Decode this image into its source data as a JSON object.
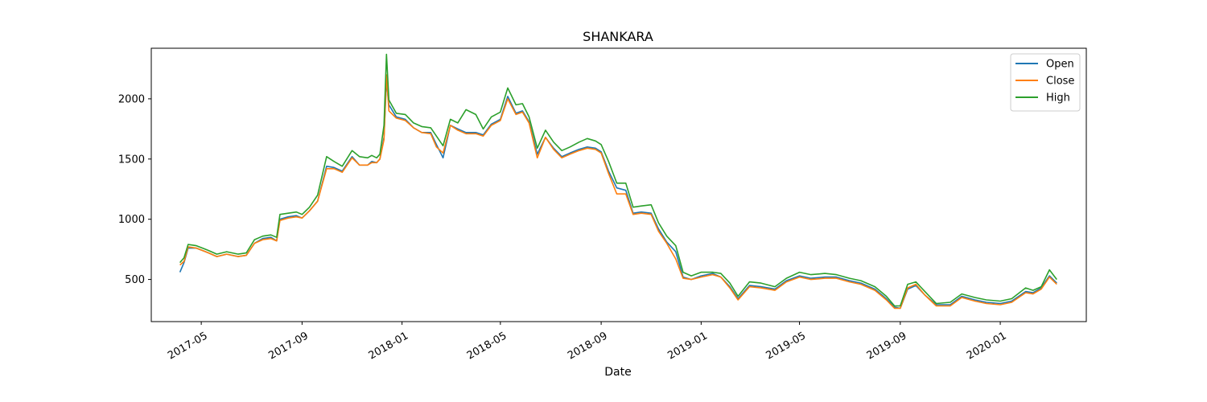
{
  "chart_data": {
    "type": "line",
    "title": "SHANKARA",
    "xlabel": "Date",
    "ylabel": "",
    "xlim": [
      "2017-03-01",
      "2020-04-15"
    ],
    "ylim": [
      150,
      2420
    ],
    "grid": false,
    "legend_position": "top-right",
    "x_ticks": [
      "2017-05",
      "2017-09",
      "2018-01",
      "2018-05",
      "2018-09",
      "2019-01",
      "2019-05",
      "2019-09",
      "2020-01"
    ],
    "y_ticks": [
      500,
      1000,
      1500,
      2000
    ],
    "colors": {
      "Open": "#1f77b4",
      "Close": "#ff7f0e",
      "High": "#2ca02c"
    },
    "x": [
      "2017-04-05",
      "2017-04-10",
      "2017-04-15",
      "2017-04-25",
      "2017-05-10",
      "2017-05-20",
      "2017-06-01",
      "2017-06-15",
      "2017-06-25",
      "2017-07-05",
      "2017-07-15",
      "2017-07-25",
      "2017-08-01",
      "2017-08-05",
      "2017-08-15",
      "2017-08-25",
      "2017-09-01",
      "2017-09-10",
      "2017-09-20",
      "2017-10-01",
      "2017-10-10",
      "2017-10-20",
      "2017-11-01",
      "2017-11-10",
      "2017-11-20",
      "2017-11-25",
      "2017-12-01",
      "2017-12-05",
      "2017-12-10",
      "2017-12-13",
      "2017-12-16",
      "2017-12-25",
      "2018-01-05",
      "2018-01-15",
      "2018-01-25",
      "2018-02-05",
      "2018-02-12",
      "2018-02-20",
      "2018-03-01",
      "2018-03-10",
      "2018-03-20",
      "2018-04-01",
      "2018-04-10",
      "2018-04-20",
      "2018-05-01",
      "2018-05-10",
      "2018-05-20",
      "2018-05-28",
      "2018-06-05",
      "2018-06-15",
      "2018-06-25",
      "2018-07-05",
      "2018-07-15",
      "2018-07-25",
      "2018-08-05",
      "2018-08-15",
      "2018-08-25",
      "2018-09-01",
      "2018-09-10",
      "2018-09-20",
      "2018-10-01",
      "2018-10-10",
      "2018-10-20",
      "2018-11-01",
      "2018-11-10",
      "2018-11-20",
      "2018-12-01",
      "2018-12-10",
      "2018-12-20",
      "2019-01-01",
      "2019-01-15",
      "2019-01-25",
      "2019-02-05",
      "2019-02-15",
      "2019-03-01",
      "2019-03-15",
      "2019-04-01",
      "2019-04-15",
      "2019-05-01",
      "2019-05-15",
      "2019-06-01",
      "2019-06-15",
      "2019-07-01",
      "2019-07-15",
      "2019-08-01",
      "2019-08-15",
      "2019-08-25",
      "2019-09-01",
      "2019-09-10",
      "2019-09-20",
      "2019-10-01",
      "2019-10-15",
      "2019-11-01",
      "2019-11-15",
      "2019-12-01",
      "2019-12-15",
      "2020-01-01",
      "2020-01-15",
      "2020-02-01",
      "2020-02-10",
      "2020-02-20",
      "2020-03-01",
      "2020-03-10"
    ],
    "series": [
      {
        "name": "Open",
        "values": [
          560,
          640,
          760,
          760,
          720,
          690,
          710,
          690,
          700,
          800,
          840,
          850,
          820,
          1000,
          1020,
          1030,
          1010,
          1070,
          1150,
          1440,
          1430,
          1400,
          1520,
          1450,
          1450,
          1480,
          1470,
          1500,
          1680,
          2150,
          1950,
          1850,
          1830,
          1760,
          1720,
          1720,
          1620,
          1510,
          1780,
          1750,
          1720,
          1720,
          1700,
          1790,
          1830,
          2020,
          1880,
          1900,
          1810,
          1540,
          1680,
          1590,
          1520,
          1550,
          1580,
          1600,
          1590,
          1560,
          1400,
          1260,
          1240,
          1050,
          1060,
          1050,
          920,
          810,
          730,
          520,
          500,
          530,
          550,
          520,
          440,
          340,
          450,
          440,
          420,
          490,
          530,
          510,
          520,
          520,
          490,
          470,
          420,
          340,
          270,
          260,
          420,
          450,
          370,
          290,
          290,
          360,
          330,
          310,
          300,
          320,
          400,
          390,
          430,
          530,
          470
        ]
      },
      {
        "name": "Close",
        "values": [
          620,
          650,
          770,
          760,
          720,
          690,
          710,
          690,
          700,
          800,
          830,
          840,
          820,
          990,
          1010,
          1020,
          1010,
          1070,
          1150,
          1420,
          1420,
          1390,
          1510,
          1450,
          1450,
          1470,
          1470,
          1500,
          1660,
          2200,
          1900,
          1840,
          1820,
          1760,
          1720,
          1710,
          1600,
          1550,
          1780,
          1740,
          1710,
          1710,
          1690,
          1780,
          1820,
          2000,
          1870,
          1890,
          1800,
          1510,
          1680,
          1580,
          1510,
          1540,
          1570,
          1590,
          1580,
          1550,
          1380,
          1210,
          1210,
          1040,
          1050,
          1040,
          900,
          800,
          670,
          510,
          500,
          520,
          540,
          520,
          430,
          330,
          440,
          430,
          410,
          480,
          520,
          500,
          510,
          510,
          480,
          460,
          410,
          330,
          260,
          260,
          430,
          460,
          370,
          280,
          280,
          350,
          320,
          300,
          290,
          310,
          390,
          380,
          420,
          520,
          460
        ]
      },
      {
        "name": "High",
        "values": [
          640,
          680,
          790,
          780,
          740,
          710,
          730,
          710,
          720,
          830,
          860,
          870,
          850,
          1040,
          1050,
          1060,
          1040,
          1100,
          1200,
          1520,
          1480,
          1440,
          1570,
          1520,
          1510,
          1530,
          1510,
          1540,
          1780,
          2370,
          1990,
          1880,
          1870,
          1800,
          1770,
          1760,
          1690,
          1610,
          1830,
          1800,
          1910,
          1870,
          1750,
          1850,
          1890,
          2090,
          1950,
          1960,
          1850,
          1590,
          1740,
          1640,
          1570,
          1600,
          1640,
          1670,
          1650,
          1620,
          1480,
          1300,
          1300,
          1100,
          1110,
          1120,
          970,
          860,
          780,
          560,
          530,
          560,
          560,
          550,
          470,
          360,
          480,
          470,
          440,
          510,
          560,
          540,
          550,
          540,
          510,
          490,
          440,
          360,
          280,
          280,
          460,
          480,
          400,
          300,
          310,
          380,
          350,
          330,
          320,
          340,
          430,
          410,
          440,
          580,
          500
        ]
      }
    ]
  }
}
